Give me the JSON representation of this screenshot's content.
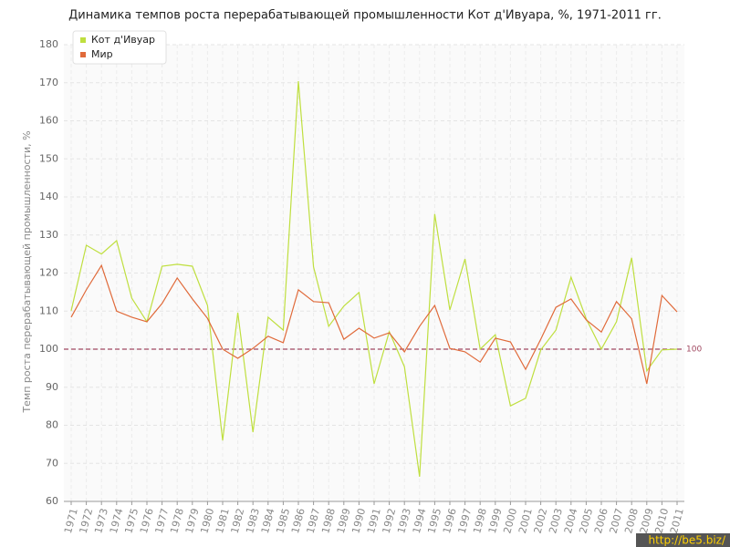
{
  "chart_data": {
    "type": "line",
    "title": "Динамика темпов роста перерабатывающей промышленности Кот д'Ивуара, %, 1971-2011 гг.",
    "y_label": "Темп роста перерабатывающей промышленности, %",
    "categories": [
      "1971",
      "1972",
      "1973",
      "1974",
      "1975",
      "1976",
      "1977",
      "1978",
      "1979",
      "1980",
      "1981",
      "1982",
      "1983",
      "1984",
      "1985",
      "1986",
      "1987",
      "1988",
      "1989",
      "1990",
      "1991",
      "1992",
      "1993",
      "1994",
      "1995",
      "1996",
      "1997",
      "1998",
      "1999",
      "2000",
      "2001",
      "2002",
      "2003",
      "2004",
      "2005",
      "2006",
      "2007",
      "2008",
      "2009",
      "2010",
      "2011"
    ],
    "series": [
      {
        "name": "Кот д'Ивуар",
        "color": "#bfdf3f",
        "values": [
          110.1,
          127.3,
          125,
          128.5,
          113.4,
          107.2,
          121.8,
          122.3,
          121.8,
          111.5,
          76,
          109.6,
          78.2,
          108.4,
          105,
          170.4,
          121.6,
          106,
          111.3,
          114.9,
          90.9,
          104.6,
          95.4,
          66.5,
          135.5,
          110.3,
          123.7,
          100,
          103.8,
          85.1,
          87.1,
          99.8,
          105,
          118.9,
          108,
          100,
          107.2,
          124,
          94.3,
          99.8,
          100
        ]
      },
      {
        "name": "Мир",
        "color": "#e06a3a",
        "values": [
          108.4,
          115.6,
          122,
          110,
          108.4,
          107.2,
          112,
          118.7,
          113.2,
          108.1,
          100,
          97.6,
          100.2,
          103.4,
          101.7,
          115.6,
          112.5,
          112.2,
          102.6,
          105.5,
          102.9,
          104.3,
          99.3,
          106,
          111.5,
          100.2,
          99.3,
          96.6,
          102.9,
          101.9,
          94.7,
          102.6,
          111,
          113.2,
          107.7,
          104.5,
          112.5,
          108,
          90.9,
          114.1,
          109.8
        ]
      }
    ],
    "reference_line": 100,
    "ylim": [
      60,
      180
    ],
    "yticks": [
      60,
      70,
      80,
      90,
      100,
      110,
      120,
      130,
      140,
      150,
      160,
      170,
      180
    ],
    "grid": true,
    "legend_position": "top-left",
    "watermark": "http://be5.biz/"
  }
}
